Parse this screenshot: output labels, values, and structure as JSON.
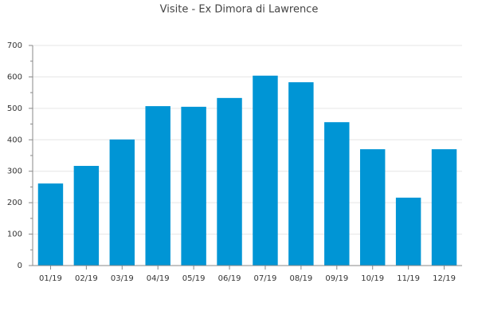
{
  "chart_data": {
    "type": "bar",
    "title": "Visite - Ex Dimora di Lawrence",
    "categories": [
      "01/19",
      "02/19",
      "03/19",
      "04/19",
      "05/19",
      "06/19",
      "07/19",
      "08/19",
      "09/19",
      "10/19",
      "11/19",
      "12/19"
    ],
    "values": [
      261,
      317,
      401,
      507,
      505,
      533,
      604,
      583,
      456,
      370,
      216,
      370
    ],
    "color": "#0095d5",
    "ylim": [
      0,
      700
    ],
    "yticks": [
      0,
      100,
      200,
      300,
      400,
      500,
      600,
      700
    ],
    "grid": true
  }
}
